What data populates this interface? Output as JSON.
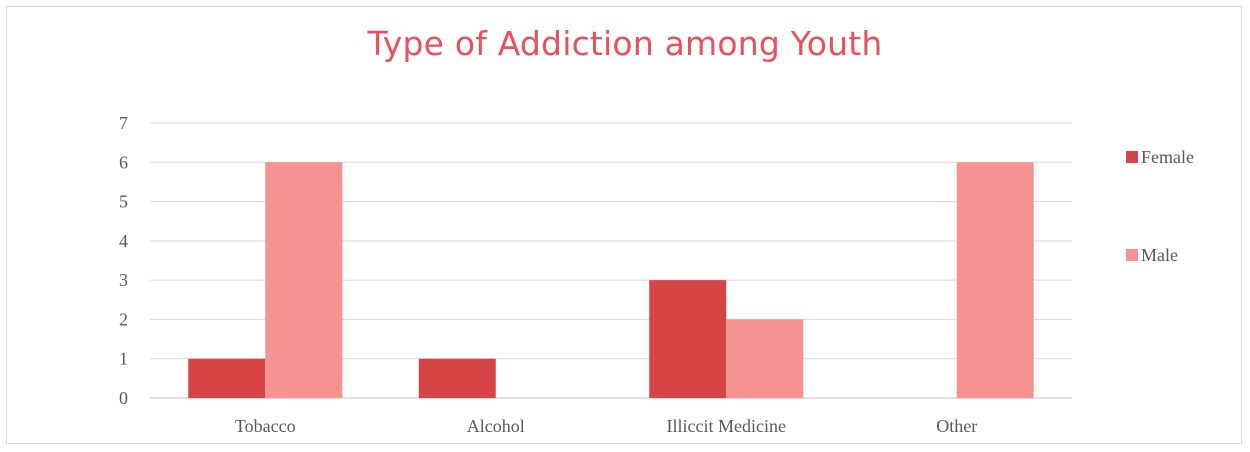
{
  "chart_data": {
    "type": "bar",
    "title": "Type of Addiction among Youth",
    "xlabel": "",
    "ylabel": "",
    "categories": [
      "Tobacco",
      "Alcohol",
      "Illiccit Medicine",
      "Other"
    ],
    "series": [
      {
        "name": "Female",
        "values": [
          1,
          1,
          3,
          0
        ],
        "color": "#d64545"
      },
      {
        "name": "Male",
        "values": [
          6,
          0,
          2,
          6
        ],
        "color": "#f59393"
      }
    ],
    "ylim": [
      0,
      7
    ],
    "yticks": [
      "0",
      "1",
      "2",
      "3",
      "4",
      "5",
      "6",
      "7"
    ],
    "grid": true,
    "legend_position": "right",
    "gridline_color": "#d9d9d9",
    "axis_color": "#bfbfbf"
  }
}
